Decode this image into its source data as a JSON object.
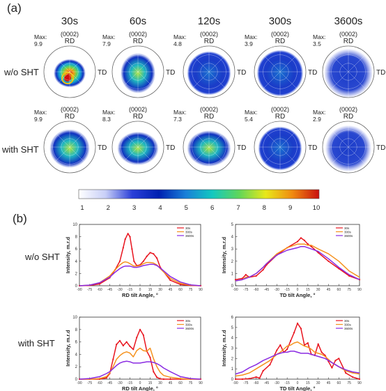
{
  "panel_a_label": "(a)",
  "panel_b_label": "(b)",
  "columns": [
    "30s",
    "60s",
    "120s",
    "300s",
    "3600s"
  ],
  "pole_figures": {
    "plane": "(0002)",
    "rd": "RD",
    "td": "TD",
    "rows": [
      {
        "label": "w/o SHT",
        "max_title": "Max:",
        "max": [
          "9.9",
          "7.9",
          "4.8",
          "3.9",
          "3.5"
        ]
      },
      {
        "label": "with SHT",
        "max_title": "Max:",
        "max": [
          "9.9",
          "8.3",
          "7.3",
          "5.4",
          "2.9"
        ]
      }
    ]
  },
  "colorbar": {
    "ticks": [
      "1",
      "2",
      "3",
      "4",
      "5",
      "6",
      "7",
      "8",
      "9",
      "10"
    ],
    "colors": [
      "#ffffff",
      "#c8cff7",
      "#2a3fd8",
      "#0020b0",
      "#1a7fd8",
      "#12c8c0",
      "#5fd65a",
      "#e8e81a",
      "#f08a10",
      "#c81010"
    ]
  },
  "line_rows": [
    {
      "label": "w/o SHT"
    },
    {
      "label": "with SHT"
    }
  ],
  "chart_data": [
    {
      "type": "line",
      "row": "w/o SHT",
      "xlabel": "RD tilt Angle, °",
      "ylabel": "Intensity, m.r.d",
      "xlim": [
        -90,
        90
      ],
      "ylim": [
        0,
        10
      ],
      "xticks": [
        "-90",
        "-75",
        "-60",
        "-45",
        "-30",
        "-15",
        "0",
        "15",
        "30",
        "45",
        "60",
        "75",
        "90"
      ],
      "yticks": [
        "0",
        "2",
        "4",
        "6",
        "8",
        "10"
      ],
      "legend": "top-right",
      "x": [
        -90,
        -75,
        -60,
        -45,
        -37,
        -30,
        -25,
        -22,
        -18,
        -15,
        -12,
        -9,
        -5,
        0,
        5,
        10,
        15,
        20,
        25,
        30,
        45,
        60,
        75,
        90
      ],
      "series": [
        {
          "name": "30s",
          "color": "#e8141e",
          "values": [
            0,
            0.05,
            0.3,
            1.3,
            2.6,
            4.0,
            6.2,
            7.6,
            8.5,
            8.0,
            6.0,
            4.0,
            3.3,
            3.4,
            4.0,
            4.8,
            5.4,
            5.2,
            4.5,
            3.0,
            0.9,
            0.2,
            0.05,
            0
          ]
        },
        {
          "name": "300s",
          "color": "#f5921e",
          "values": [
            0,
            0.1,
            0.5,
            1.6,
            2.6,
            3.4,
            3.8,
            3.9,
            3.8,
            3.6,
            3.4,
            3.2,
            3.2,
            3.3,
            3.6,
            3.8,
            3.8,
            3.7,
            3.4,
            2.8,
            1.2,
            0.4,
            0.1,
            0
          ]
        },
        {
          "name": "3600s",
          "color": "#8a2be2",
          "values": [
            0,
            0.1,
            0.5,
            1.4,
            2.2,
            2.8,
            3.1,
            3.2,
            3.2,
            3.2,
            3.1,
            3.0,
            3.0,
            3.1,
            3.3,
            3.4,
            3.5,
            3.5,
            3.3,
            2.9,
            1.5,
            0.6,
            0.15,
            0
          ]
        }
      ]
    },
    {
      "type": "line",
      "row": "w/o SHT",
      "xlabel": "TD tilt Angle, °",
      "ylabel": "Intensity, m.r.d",
      "xlim": [
        -90,
        90
      ],
      "ylim": [
        0,
        5
      ],
      "xticks": [
        "-90",
        "-75",
        "-60",
        "-45",
        "-30",
        "-15",
        "0",
        "15",
        "30",
        "45",
        "60",
        "75",
        "90"
      ],
      "yticks": [
        "0",
        "1",
        "2",
        "3",
        "4",
        "5"
      ],
      "legend": "top-right",
      "x": [
        -90,
        -80,
        -75,
        -70,
        -60,
        -50,
        -45,
        -30,
        -15,
        0,
        5,
        10,
        15,
        20,
        30,
        45,
        60,
        75,
        90
      ],
      "series": [
        {
          "name": "30s",
          "color": "#e8141e",
          "values": [
            0.5,
            0.6,
            0.9,
            0.7,
            0.8,
            1.3,
            1.7,
            2.5,
            3.1,
            3.6,
            3.9,
            3.7,
            3.4,
            3.2,
            2.7,
            2.0,
            1.4,
            0.8,
            0.5
          ]
        },
        {
          "name": "300s",
          "color": "#f5921e",
          "values": [
            0.4,
            0.5,
            0.7,
            0.7,
            1.0,
            1.5,
            1.8,
            2.6,
            3.1,
            3.4,
            3.4,
            3.4,
            3.3,
            3.3,
            3.0,
            2.6,
            2.0,
            1.2,
            0.7
          ]
        },
        {
          "name": "3600s",
          "color": "#8a2be2",
          "values": [
            0.4,
            0.5,
            0.6,
            0.7,
            1.0,
            1.5,
            1.8,
            2.5,
            2.9,
            3.1,
            3.2,
            3.2,
            3.1,
            3.0,
            2.8,
            2.2,
            1.5,
            0.9,
            0.5
          ]
        }
      ]
    },
    {
      "type": "line",
      "row": "with SHT",
      "xlabel": "RD tilt Angle, °",
      "ylabel": "Intensity, m.r.d",
      "xlim": [
        -90,
        90
      ],
      "ylim": [
        0,
        10
      ],
      "xticks": [
        "-90",
        "-75",
        "-60",
        "-45",
        "-30",
        "-15",
        "0",
        "15",
        "30",
        "45",
        "60",
        "75",
        "90"
      ],
      "yticks": [
        "0",
        "2",
        "4",
        "6",
        "8",
        "10"
      ],
      "legend": "top-right",
      "x": [
        -90,
        -75,
        -60,
        -50,
        -45,
        -40,
        -35,
        -30,
        -25,
        -20,
        -15,
        -10,
        -5,
        0,
        5,
        10,
        15,
        20,
        25,
        30,
        35,
        45,
        60,
        75,
        90
      ],
      "series": [
        {
          "name": "30s",
          "color": "#e8141e",
          "values": [
            0,
            0,
            0,
            0.2,
            0.9,
            3.2,
            5.6,
            6.2,
            5.4,
            6.0,
            5.3,
            4.8,
            6.7,
            8.0,
            7.1,
            4.5,
            3.5,
            1.2,
            0.3,
            0.05,
            0,
            0,
            0,
            0,
            0
          ]
        },
        {
          "name": "300s",
          "color": "#f5921e",
          "values": [
            0,
            0,
            0.1,
            0.4,
            1.0,
            2.0,
            3.2,
            3.8,
            4.2,
            4.4,
            4.2,
            3.6,
            4.6,
            5.0,
            4.6,
            4.5,
            5.0,
            3.3,
            2.0,
            1.1,
            0.6,
            0.3,
            0.1,
            0,
            0
          ]
        },
        {
          "name": "3600s",
          "color": "#8a2be2",
          "values": [
            0,
            0.1,
            0.4,
            0.9,
            1.2,
            1.7,
            2.2,
            2.6,
            2.8,
            2.9,
            2.8,
            2.6,
            2.6,
            2.6,
            2.7,
            2.8,
            2.8,
            2.7,
            2.5,
            2.2,
            1.8,
            1.2,
            0.4,
            0.1,
            0
          ]
        }
      ]
    },
    {
      "type": "line",
      "row": "with SHT",
      "xlabel": "TD tilt Angle, °",
      "ylabel": "Intensity, m.r.d",
      "xlim": [
        -90,
        90
      ],
      "ylim": [
        0,
        6
      ],
      "xticks": [
        "-90",
        "-75",
        "-60",
        "-45",
        "-30",
        "-15",
        "0",
        "15",
        "30",
        "45",
        "60",
        "75",
        "90"
      ],
      "yticks": [
        "0",
        "1",
        "2",
        "3",
        "4",
        "5",
        "6"
      ],
      "legend": "top-right",
      "x": [
        -90,
        -80,
        -70,
        -60,
        -55,
        -50,
        -40,
        -30,
        -25,
        -20,
        -15,
        -10,
        -5,
        0,
        5,
        10,
        15,
        20,
        25,
        30,
        35,
        40,
        45,
        50,
        55,
        60,
        70,
        80,
        90
      ],
      "series": [
        {
          "name": "30s",
          "color": "#e8141e",
          "values": [
            0,
            0,
            0.05,
            0.2,
            0.1,
            0.8,
            1.4,
            2.8,
            3.3,
            2.6,
            2.9,
            3.7,
            4.5,
            5.4,
            4.9,
            3.3,
            3.5,
            2.4,
            2.3,
            3.4,
            2.6,
            2.3,
            1.7,
            1.1,
            1.8,
            2.0,
            0.6,
            0.2,
            0
          ]
        },
        {
          "name": "300s",
          "color": "#f5921e",
          "values": [
            0.3,
            0.4,
            0.6,
            1.0,
            1.2,
            1.4,
            1.8,
            2.4,
            2.6,
            2.9,
            3.2,
            3.3,
            3.5,
            3.6,
            3.4,
            3.2,
            3.1,
            2.9,
            2.6,
            2.5,
            2.4,
            2.2,
            1.9,
            1.6,
            1.4,
            1.2,
            0.8,
            0.6,
            0.5
          ]
        },
        {
          "name": "3600s",
          "color": "#8a2be2",
          "values": [
            0.5,
            0.7,
            1.1,
            1.4,
            1.6,
            1.8,
            2.1,
            2.4,
            2.5,
            2.6,
            2.6,
            2.7,
            2.7,
            2.6,
            2.5,
            2.5,
            2.5,
            2.4,
            2.3,
            2.2,
            2.1,
            2.0,
            1.8,
            1.6,
            1.4,
            1.2,
            0.9,
            0.7,
            0.6
          ]
        }
      ]
    }
  ]
}
